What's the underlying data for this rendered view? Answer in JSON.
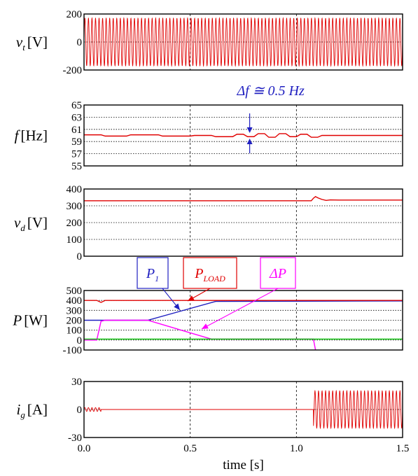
{
  "colors": {
    "red": "#e00000",
    "blue": "#2020c0",
    "magenta": "#ff00ff",
    "green": "#00c000",
    "grid": "#000000"
  },
  "shared_x": {
    "xlim": [
      0,
      1.5
    ],
    "ticks": [
      0,
      0.5,
      1,
      1.5
    ],
    "tick_labels": [
      "0.0",
      "0.5",
      "1.0",
      "1.5"
    ],
    "xlabel": "time [s]"
  },
  "chart_data": [
    {
      "id": "vt",
      "type": "line",
      "ylabel_main": "v",
      "ylabel_sub": "t",
      "ylabel_unit": "[V]",
      "ylim": [
        -200,
        200
      ],
      "yticks": [
        -200,
        0,
        200
      ],
      "ytick_labels": [
        "-200",
        "0",
        "200"
      ],
      "series": [
        {
          "color": "red",
          "kind": "sine",
          "amplitude": 170,
          "frequency_hz": 60,
          "x": [
            0,
            1.5
          ]
        }
      ]
    },
    {
      "id": "f",
      "type": "line",
      "ylabel_main": "f",
      "ylabel_sub": "",
      "ylabel_unit": "[Hz]",
      "ylim": [
        55,
        65
      ],
      "yticks": [
        55,
        57,
        59,
        61,
        63,
        65
      ],
      "ytick_labels": [
        "55",
        "57",
        "59",
        "61",
        "63",
        "65"
      ],
      "annotation": {
        "label": "Δf ≅ 0.5 Hz",
        "x": 0.78,
        "y_low": 59.6,
        "y_high": 60.3
      },
      "series": [
        {
          "color": "red",
          "x": [
            0,
            0.08,
            0.1,
            0.2,
            0.22,
            0.35,
            0.37,
            0.5,
            0.52,
            0.6,
            0.62,
            0.7,
            0.72,
            0.75,
            0.77,
            0.8,
            0.82,
            0.85,
            0.87,
            0.9,
            0.92,
            0.95,
            0.97,
            1.0,
            1.02,
            1.05,
            1.07,
            1.1,
            1.12,
            1.5
          ],
          "y": [
            60.1,
            60.1,
            59.9,
            59.9,
            60.1,
            60.1,
            59.9,
            59.9,
            60.0,
            60.0,
            59.8,
            59.8,
            60.2,
            60.2,
            59.8,
            59.8,
            60.3,
            60.3,
            59.7,
            59.7,
            60.3,
            60.3,
            59.8,
            59.8,
            60.2,
            60.2,
            59.7,
            59.7,
            60.0,
            60.0
          ]
        }
      ]
    },
    {
      "id": "vd",
      "type": "line",
      "ylabel_main": "v",
      "ylabel_sub": "d",
      "ylabel_unit": "[V]",
      "ylim": [
        0,
        400
      ],
      "yticks": [
        0,
        100,
        200,
        300,
        400
      ],
      "ytick_labels": [
        "0",
        "100",
        "200",
        "300",
        "400"
      ],
      "series": [
        {
          "color": "red",
          "x": [
            0,
            1.07,
            1.08,
            1.09,
            1.1,
            1.12,
            1.14,
            1.16,
            1.2,
            1.5
          ],
          "y": [
            330,
            330,
            345,
            355,
            348,
            338,
            332,
            335,
            334,
            334
          ]
        }
      ]
    },
    {
      "id": "P",
      "type": "line",
      "ylabel_main": "P",
      "ylabel_sub": "",
      "ylabel_unit": "[W]",
      "ylim": [
        -100,
        500
      ],
      "yticks": [
        -100,
        0,
        100,
        200,
        300,
        400,
        500
      ],
      "ytick_labels": [
        "-100",
        "0",
        "100",
        "200",
        "300",
        "400",
        "500"
      ],
      "labels": [
        {
          "main": "P",
          "sub": "1",
          "color": "blue"
        },
        {
          "main": "P",
          "sub": "LOAD",
          "color": "red"
        },
        {
          "main": "ΔP",
          "sub": "",
          "color": "magenta"
        }
      ],
      "series": [
        {
          "name": "P1",
          "color": "blue",
          "x": [
            0,
            0.3,
            0.62,
            1.5
          ],
          "y": [
            200,
            200,
            390,
            395
          ]
        },
        {
          "name": "PLOAD",
          "color": "red",
          "x": [
            0,
            0.06,
            0.08,
            0.1,
            1.5
          ],
          "y": [
            400,
            400,
            380,
            400,
            400
          ]
        },
        {
          "name": "ΔP",
          "color": "magenta",
          "x": [
            0,
            0.06,
            0.08,
            0.1,
            0.3,
            0.6,
            1.08,
            1.09
          ],
          "y": [
            0,
            0,
            190,
            200,
            200,
            10,
            10,
            -100
          ]
        },
        {
          "name": "P0",
          "color": "green",
          "x": [
            0,
            1.5
          ],
          "y": [
            10,
            10
          ]
        }
      ]
    },
    {
      "id": "ig",
      "type": "line",
      "ylabel_main": "i",
      "ylabel_sub": "g",
      "ylabel_unit": "[A]",
      "ylim": [
        -30,
        30
      ],
      "yticks": [
        -30,
        0,
        30
      ],
      "ytick_labels": [
        "-30",
        "0",
        "30"
      ],
      "series": [
        {
          "color": "red",
          "kind": "piecewise_sine",
          "x": [
            0,
            1.5
          ],
          "start_amplitude": 2,
          "start_end": 0.08,
          "zero_until": 1.08,
          "amplitude": 20,
          "frequency_hz": 60
        }
      ]
    }
  ]
}
